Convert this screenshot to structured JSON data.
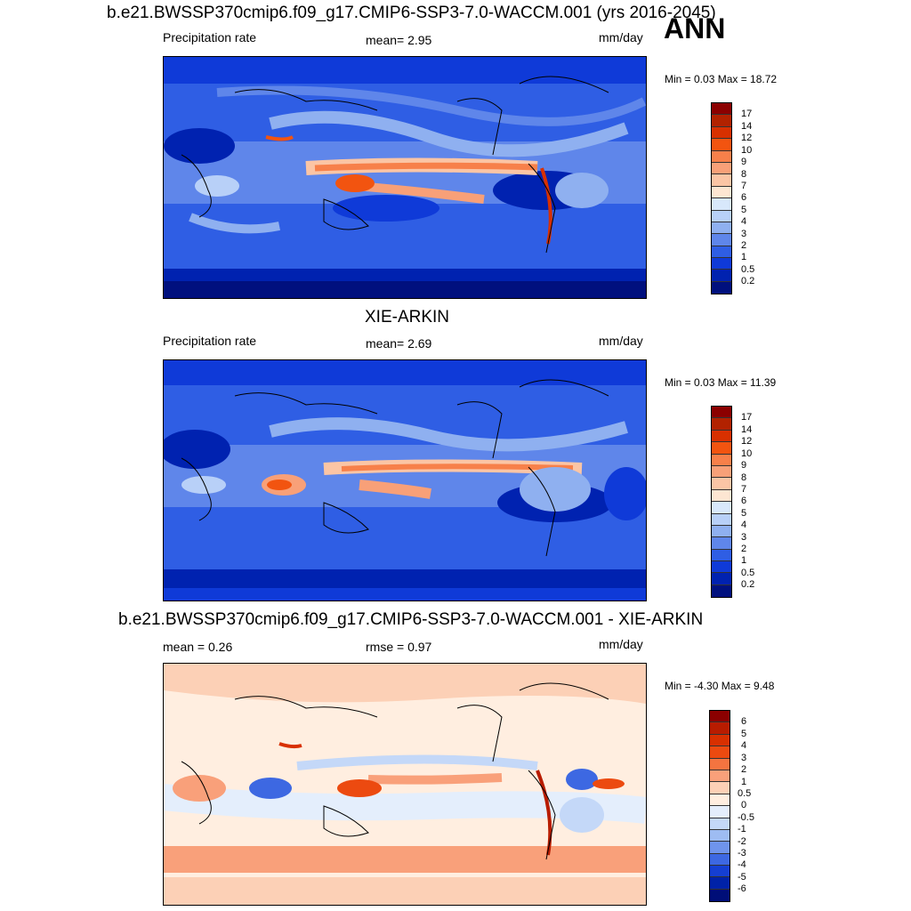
{
  "season": "ANN",
  "units": "mm/day",
  "panels": [
    {
      "title": "b.e21.BWSSP370cmip6.f09_g17.CMIP6-SSP3-7.0-WACCM.001 (yrs 2016-2045)",
      "left_label": "Precipitation rate",
      "center_label": "mean=   2.95",
      "right_label": "mm/day",
      "minmax": "Min =   0.03 Max =  18.72",
      "levels": [
        "17",
        "14",
        "12",
        "10",
        "9",
        "8",
        "7",
        "6",
        "5",
        "4",
        "3",
        "2",
        "1",
        "0.5",
        "0.2"
      ],
      "colors": [
        "#8b0000",
        "#b22200",
        "#d83000",
        "#f25410",
        "#f7804a",
        "#f8a078",
        "#fbc5a5",
        "#fde6d2",
        "#d8e8fb",
        "#b8d0f8",
        "#8fb0f0",
        "#5f86ea",
        "#2f5ee4",
        "#0f3ad8",
        "#0022b0",
        "#00107e"
      ]
    },
    {
      "title": "XIE-ARKIN",
      "left_label": "Precipitation rate",
      "center_label": "mean=   2.69",
      "right_label": "mm/day",
      "minmax": "Min =   0.03 Max =  11.39",
      "levels": [
        "17",
        "14",
        "12",
        "10",
        "9",
        "8",
        "7",
        "6",
        "5",
        "4",
        "3",
        "2",
        "1",
        "0.5",
        "0.2"
      ],
      "colors": [
        "#8b0000",
        "#b22200",
        "#d83000",
        "#f25410",
        "#f7804a",
        "#f8a078",
        "#fbc5a5",
        "#fde6d2",
        "#d8e8fb",
        "#b8d0f8",
        "#8fb0f0",
        "#5f86ea",
        "#2f5ee4",
        "#0f3ad8",
        "#0022b0",
        "#00107e"
      ]
    },
    {
      "title": "b.e21.BWSSP370cmip6.f09_g17.CMIP6-SSP3-7.0-WACCM.001 - XIE-ARKIN",
      "left_label": "mean =   0.26",
      "center_label": "rmse =   0.97",
      "right_label": "mm/day",
      "minmax": "Min =  -4.30 Max =   9.48",
      "levels": [
        "6",
        "5",
        "4",
        "3",
        "2",
        "1",
        "0.5",
        "0",
        "-0.5",
        "-1",
        "-2",
        "-3",
        "-4",
        "-5",
        "-6"
      ],
      "colors": [
        "#8b0000",
        "#b81c00",
        "#d83000",
        "#ec4a10",
        "#f47440",
        "#f9a07a",
        "#fcd0b6",
        "#ffeee0",
        "#e4eefc",
        "#c4d8f8",
        "#9ebcf2",
        "#6f94ec",
        "#3d68e2",
        "#153fd2",
        "#0022a8",
        "#000e78"
      ]
    }
  ]
}
